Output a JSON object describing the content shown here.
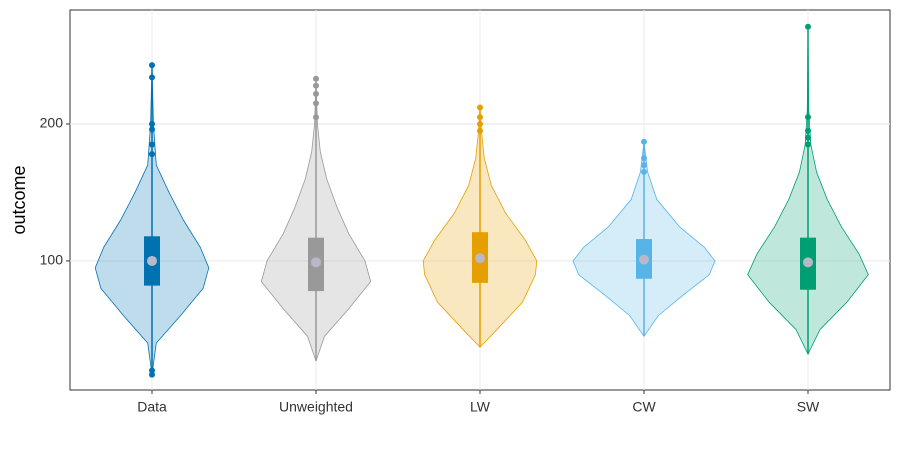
{
  "chart_data": {
    "type": "violin",
    "y_label": "outcome",
    "categories": [
      "Data",
      "Unweighted",
      "LW",
      "CW",
      "SW"
    ],
    "ylim": [
      5.8,
      283.2
    ],
    "yticks": [
      100,
      200
    ],
    "grid": true,
    "series": [
      {
        "name": "Data",
        "color": "#0072b2",
        "min": 17,
        "q1": 82,
        "median": 100,
        "q3": 118,
        "max": 243,
        "outliers": [
          243,
          234,
          200,
          196,
          185,
          178,
          20,
          17
        ],
        "density": {
          "y": [
            17,
            40,
            60,
            80,
            95,
            110,
            130,
            150,
            170,
            200,
            243
          ],
          "width": [
            0,
            0.06,
            0.4,
            0.72,
            0.8,
            0.68,
            0.44,
            0.24,
            0.06,
            0.02,
            0
          ]
        }
      },
      {
        "name": "Unweighted",
        "color": "#999999",
        "min": 27,
        "q1": 78,
        "median": 99,
        "q3": 117,
        "max": 233,
        "outliers": [
          233,
          228,
          222,
          215,
          205
        ],
        "density": {
          "y": [
            27,
            45,
            65,
            85,
            100,
            120,
            140,
            160,
            180,
            200,
            233
          ],
          "width": [
            0,
            0.12,
            0.46,
            0.77,
            0.69,
            0.46,
            0.29,
            0.15,
            0.06,
            0.02,
            0
          ]
        }
      },
      {
        "name": "LW",
        "color": "#e69f00",
        "min": 37,
        "q1": 84,
        "median": 102,
        "q3": 121,
        "max": 212,
        "outliers": [
          212,
          205,
          200,
          195
        ],
        "density": {
          "y": [
            37,
            50,
            70,
            90,
            100,
            115,
            135,
            155,
            175,
            195,
            212
          ],
          "width": [
            0,
            0.24,
            0.6,
            0.78,
            0.8,
            0.64,
            0.36,
            0.16,
            0.06,
            0.02,
            0
          ]
        }
      },
      {
        "name": "CW",
        "color": "#56b4e9",
        "min": 45,
        "q1": 87,
        "median": 101,
        "q3": 116,
        "max": 187,
        "outliers": [
          187,
          175,
          170,
          165
        ],
        "density": {
          "y": [
            45,
            60,
            75,
            90,
            100,
            110,
            125,
            145,
            165,
            187
          ],
          "width": [
            0,
            0.2,
            0.55,
            0.92,
            1,
            0.85,
            0.5,
            0.18,
            0.05,
            0
          ]
        }
      },
      {
        "name": "SW",
        "color": "#009e73",
        "min": 32,
        "q1": 79,
        "median": 99,
        "q3": 117,
        "max": 271,
        "outliers": [
          271,
          205,
          195,
          190,
          185
        ],
        "density": {
          "y": [
            32,
            50,
            70,
            90,
            105,
            125,
            145,
            165,
            185,
            210,
            271
          ],
          "width": [
            0,
            0.17,
            0.55,
            0.85,
            0.72,
            0.47,
            0.27,
            0.12,
            0.04,
            0.01,
            0
          ]
        }
      }
    ]
  }
}
